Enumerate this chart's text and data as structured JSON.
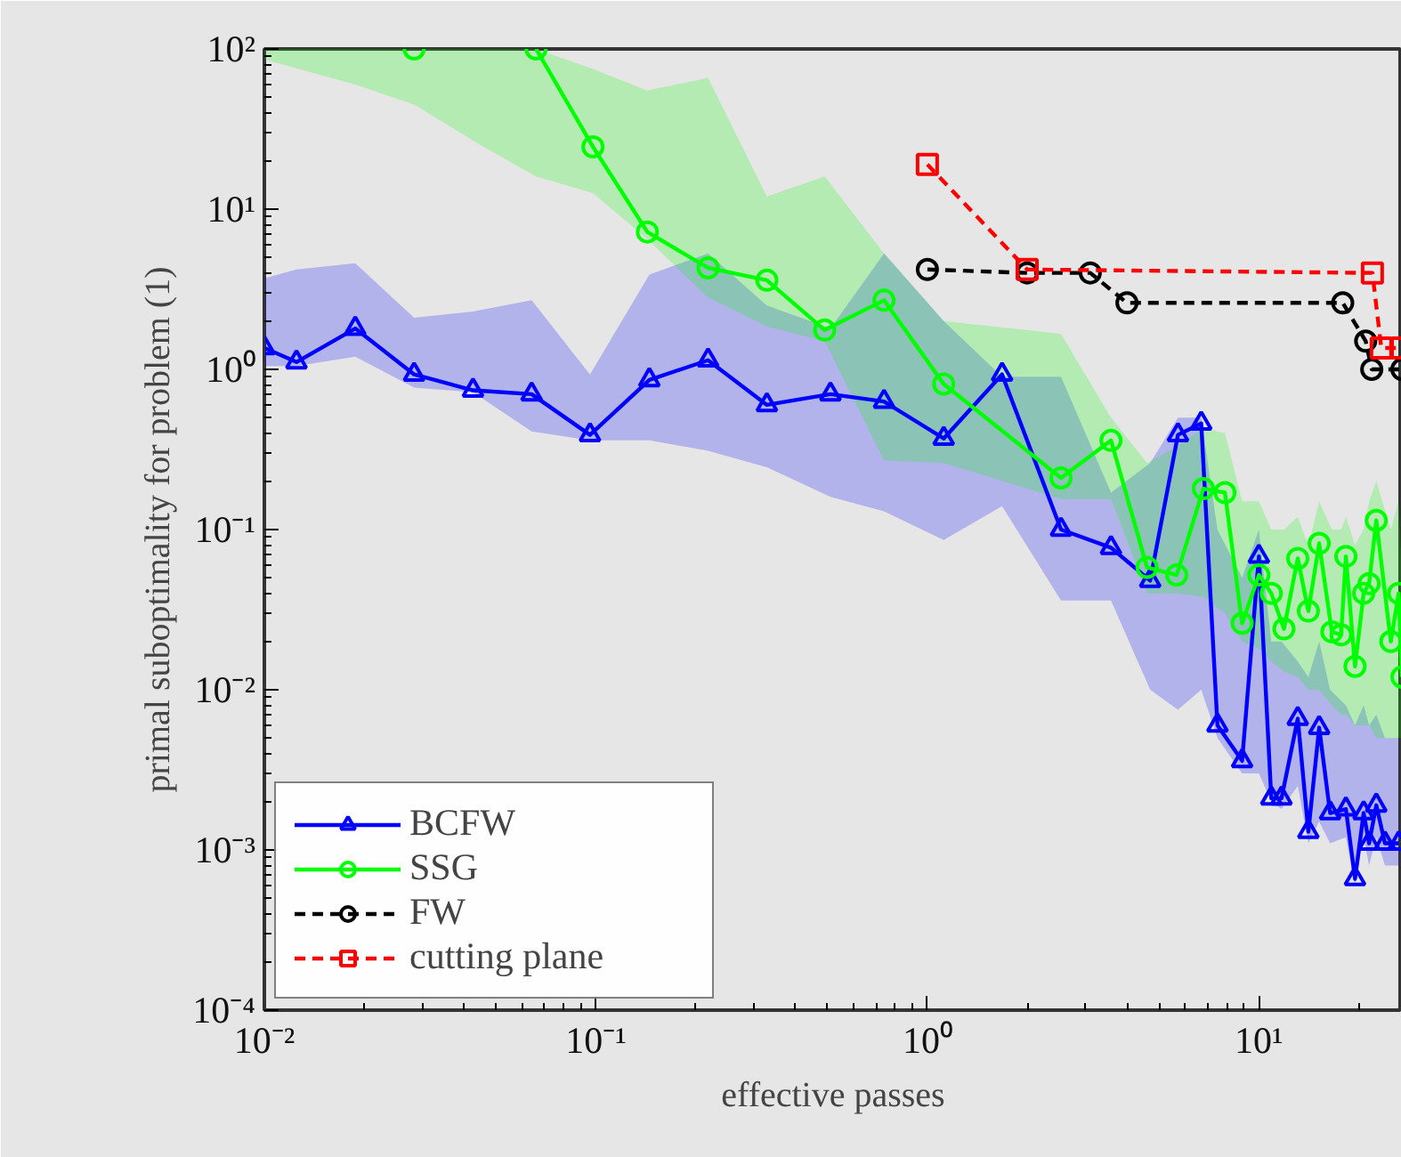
{
  "chart_data": {
    "type": "line",
    "xlabel": "effective passes",
    "ylabel": "primal suboptimality for problem (1)",
    "log": "xy",
    "xlim": [
      0.01,
      27
    ],
    "ylim": [
      0.0001,
      100
    ],
    "xticks": [
      {
        "value": 0.01,
        "label": "10⁻²"
      },
      {
        "value": 0.1,
        "label": "10⁻¹"
      },
      {
        "value": 1,
        "label": "10⁰"
      },
      {
        "value": 10,
        "label": "10¹"
      }
    ],
    "yticks": [
      {
        "value": 0.0001,
        "label": "10⁻⁴"
      },
      {
        "value": 0.001,
        "label": "10⁻³"
      },
      {
        "value": 0.01,
        "label": "10⁻²"
      },
      {
        "value": 0.1,
        "label": "10⁻¹"
      },
      {
        "value": 1,
        "label": "10⁰"
      },
      {
        "value": 10,
        "label": "10¹"
      },
      {
        "value": 100,
        "label": "10²"
      }
    ],
    "grid": false,
    "legend": "bottom left",
    "series": [
      {
        "name": "BCFW",
        "color": "#0000ff",
        "marker": "triangle",
        "line_style": "solid",
        "x": [
          0.01,
          0.0125,
          0.0188,
          0.0283,
          0.0426,
          0.064,
          0.096,
          0.145,
          0.218,
          0.328,
          0.51,
          0.74,
          1.12,
          1.68,
          2.53,
          3.58,
          4.7,
          5.7,
          6.7,
          7.5,
          8.9,
          10.0,
          10.9,
          11.7,
          13.1,
          14.1,
          15.2,
          16.4,
          18.3,
          19.5,
          20.7,
          21.5,
          22.6,
          24.0,
          26.4
        ],
        "values": [
          1.36,
          1.11,
          1.8,
          0.93,
          0.74,
          0.7,
          0.39,
          0.86,
          1.14,
          0.6,
          0.7,
          0.63,
          0.37,
          0.93,
          0.1,
          0.077,
          0.048,
          0.39,
          0.46,
          0.006,
          0.0036,
          0.068,
          0.0021,
          0.0021,
          0.0066,
          0.0013,
          0.0058,
          0.0017,
          0.0018,
          0.00066,
          0.0017,
          0.0011,
          0.0019,
          0.0011,
          0.0011
        ],
        "upper": [
          3.7,
          4.2,
          4.6,
          2.1,
          2.3,
          2.7,
          0.93,
          3.9,
          5.3,
          2.5,
          1.8,
          5.3,
          2.0,
          0.9,
          0.9,
          0.17,
          0.26,
          0.5,
          0.5,
          0.1,
          0.05,
          0.1,
          0.02,
          0.02,
          0.015,
          0.012,
          0.02,
          0.01,
          0.008,
          0.006,
          0.008,
          0.006,
          0.007,
          0.005,
          0.005
        ],
        "lower": [
          1.05,
          1.05,
          1.2,
          0.77,
          0.72,
          0.41,
          0.36,
          0.36,
          0.31,
          0.245,
          0.16,
          0.13,
          0.086,
          0.14,
          0.036,
          0.036,
          0.01,
          0.0075,
          0.01,
          0.005,
          0.003,
          0.003,
          0.002,
          0.0018,
          0.0025,
          0.0011,
          0.0015,
          0.0011,
          0.0012,
          0.0006,
          0.0012,
          0.0008,
          0.0012,
          0.0008,
          0.0008
        ]
      },
      {
        "name": "SSG",
        "color": "#00ff00",
        "marker": "circle",
        "line_style": "solid",
        "x": [
          0.01,
          0.0188,
          0.0283,
          0.045,
          0.066,
          0.098,
          0.143,
          0.218,
          0.328,
          0.49,
          0.74,
          1.12,
          2.53,
          3.58,
          4.6,
          5.65,
          6.8,
          7.9,
          8.9,
          10.0,
          10.9,
          11.9,
          13.1,
          14.1,
          15.2,
          16.6,
          17.7,
          18.3,
          19.5,
          20.7,
          21.5,
          22.6,
          25.0,
          26.4,
          27
        ],
        "values": [
          null,
          null,
          100,
          null,
          100,
          24.5,
          7.2,
          4.3,
          3.6,
          1.76,
          2.7,
          0.81,
          0.21,
          0.36,
          0.058,
          0.052,
          0.18,
          0.17,
          0.026,
          0.052,
          0.04,
          0.024,
          0.066,
          0.031,
          0.082,
          0.023,
          0.022,
          0.068,
          0.014,
          0.04,
          0.046,
          0.114,
          0.02,
          0.04,
          0.012
        ],
        "upper": [
          100,
          100,
          100,
          100,
          100,
          75,
          55,
          66,
          12,
          16,
          5.3,
          2.0,
          1.67,
          0.5,
          0.26,
          0.33,
          0.43,
          0.4,
          0.15,
          0.15,
          0.1,
          0.1,
          0.12,
          0.08,
          0.15,
          0.1,
          0.1,
          0.12,
          0.08,
          0.1,
          0.15,
          0.2,
          0.1,
          0.15,
          0.05
        ],
        "lower": [
          86,
          60,
          45,
          25,
          16,
          12.6,
          6.5,
          2.8,
          1.85,
          1.5,
          0.27,
          0.26,
          0.155,
          0.155,
          0.04,
          0.04,
          0.038,
          0.03,
          0.02,
          0.018,
          0.015,
          0.013,
          0.012,
          0.01,
          0.01,
          0.008,
          0.007,
          0.007,
          0.006,
          0.006,
          0.006,
          0.005,
          0.005,
          0.005,
          0.005
        ]
      },
      {
        "name": "FW",
        "color": "#000000",
        "marker": "circle",
        "line_style": "dashed",
        "x": [
          1.0,
          2.0,
          3.1,
          4.0,
          17.9,
          21.0,
          21.9,
          27
        ],
        "values": [
          4.2,
          4.0,
          4.0,
          2.6,
          2.6,
          1.5,
          1.0,
          1.0
        ]
      },
      {
        "name": "cutting plane",
        "color": "#ff0000",
        "marker": "square",
        "line_style": "dashed",
        "x": [
          1.0,
          2.0,
          22.0,
          23.4,
          27
        ],
        "values": [
          19,
          4.2,
          4.0,
          1.36,
          1.36
        ]
      }
    ]
  }
}
